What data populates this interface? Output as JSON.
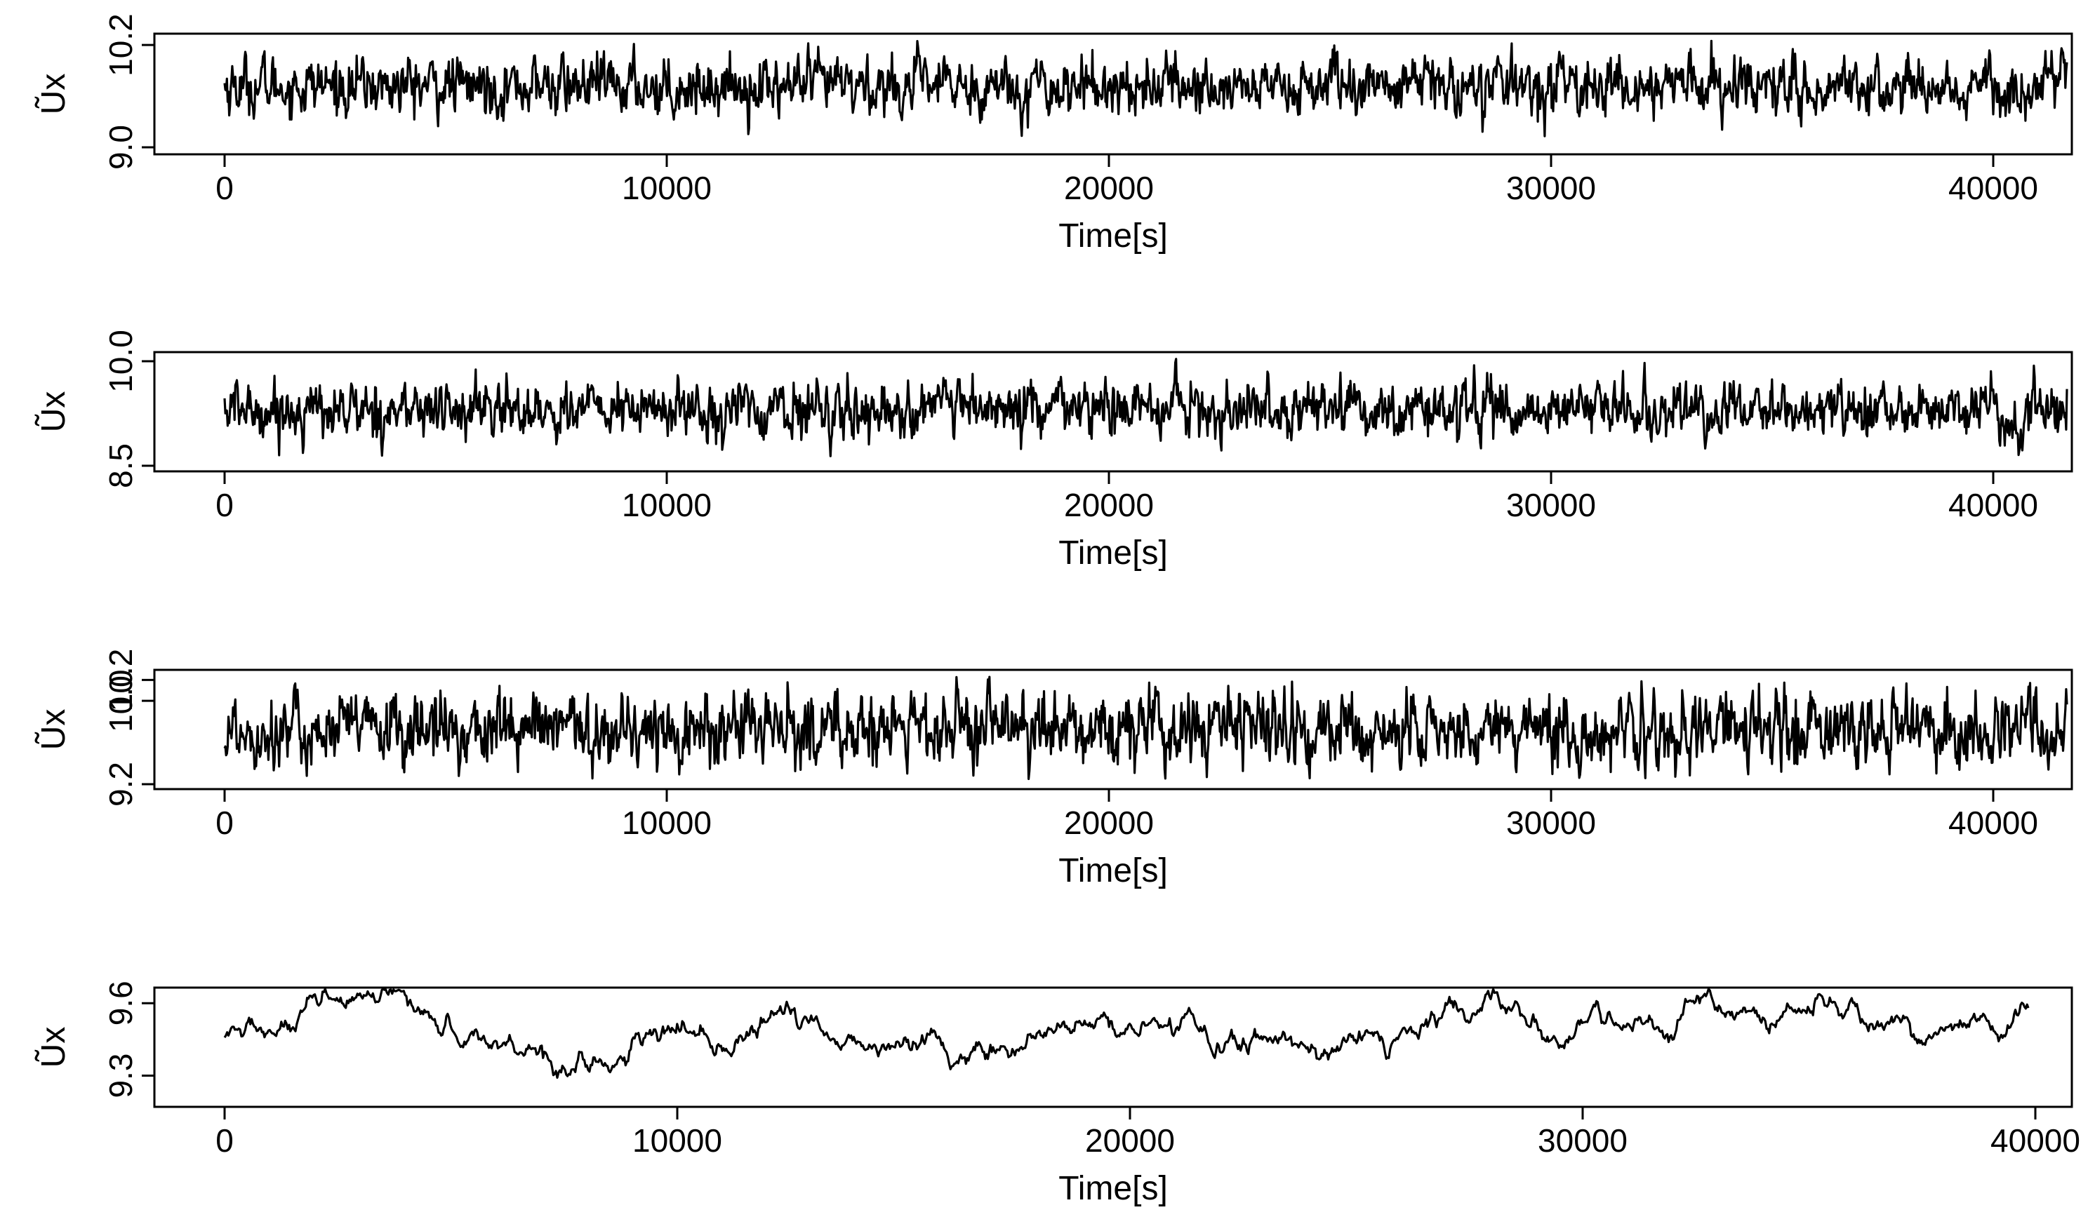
{
  "chart_data": [
    {
      "type": "line",
      "xlabel": "Time[s]",
      "ylabel": "Ũx",
      "xlim": [
        0,
        40200
      ],
      "ylim": [
        9.0,
        10.25
      ],
      "xticks": [
        0,
        10000,
        20000,
        30000,
        40000
      ],
      "xtick_labels": [
        "0",
        "10000",
        "20000",
        "30000",
        "40000"
      ],
      "yticks": [
        9.0,
        10.2
      ],
      "ytick_labels": [
        "9.0",
        "10.2"
      ],
      "series_summary": {
        "x_end": 40200,
        "mean": 9.72,
        "sd": 0.17,
        "min": 9.1,
        "max": 10.25,
        "noise": "high-frequency"
      }
    },
    {
      "type": "line",
      "xlabel": "Time[s]",
      "ylabel": "Ũx",
      "xlim": [
        0,
        40200
      ],
      "ylim": [
        8.5,
        10.05
      ],
      "xticks": [
        0,
        10000,
        20000,
        30000,
        40000
      ],
      "xtick_labels": [
        "0",
        "10000",
        "20000",
        "30000",
        "40000"
      ],
      "yticks": [
        8.5,
        10.0
      ],
      "ytick_labels": [
        "8.5",
        "10.0"
      ],
      "series_summary": {
        "x_end": 40200,
        "mean": 9.3,
        "sd": 0.2,
        "min": 8.55,
        "max": 10.05,
        "noise": "high-frequency"
      }
    },
    {
      "type": "line",
      "xlabel": "Time[s]",
      "ylabel": "Ũx",
      "xlim": [
        0,
        40200
      ],
      "ylim": [
        9.2,
        10.25
      ],
      "xticks": [
        0,
        10000,
        20000,
        30000,
        40000
      ],
      "xtick_labels": [
        "0",
        "10000",
        "20000",
        "30000",
        "40000"
      ],
      "yticks": [
        9.2,
        10.0,
        10.2
      ],
      "ytick_labels": [
        "9.2",
        "10.0",
        "10.2"
      ],
      "series_summary": {
        "x_end": 40200,
        "mean": 9.72,
        "sd": 0.18,
        "min": 9.25,
        "max": 10.23,
        "noise": "high-frequency"
      }
    },
    {
      "type": "line",
      "xlabel": "Time[s]",
      "ylabel": "Ũx",
      "xlim": [
        0,
        39700
      ],
      "ylim": [
        9.2,
        9.65
      ],
      "xticks": [
        0,
        10000,
        20000,
        30000,
        40000
      ],
      "xtick_labels": [
        "0",
        "10000",
        "20000",
        "30000",
        "40000"
      ],
      "yticks": [
        9.3,
        9.6
      ],
      "ytick_labels": [
        "9.3",
        "9.6"
      ],
      "series_summary": {
        "x_end": 39700,
        "mean": 9.45,
        "sd": 0.09,
        "min": 9.22,
        "max": 9.66,
        "noise": "smooth"
      }
    }
  ]
}
